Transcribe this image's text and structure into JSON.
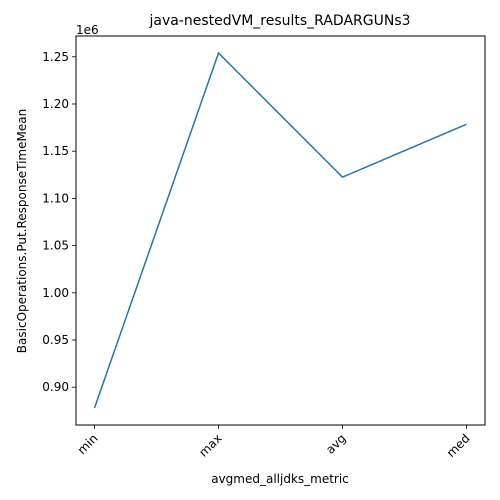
{
  "chart_data": {
    "type": "line",
    "title": "java-nestedVM_results_RADARGUNs3",
    "xlabel": "avgmed_alljdks_metric",
    "ylabel": "BasicOperations.Put.ResponseTimeMean",
    "offset_label": "1e6",
    "categories": [
      "min",
      "max",
      "avg",
      "med"
    ],
    "values": [
      878000,
      1254000,
      1122500,
      1178500
    ],
    "ylim": [
      860000,
      1272000
    ],
    "yticks": [
      900000,
      950000,
      1000000,
      1050000,
      1100000,
      1150000,
      1200000,
      1250000
    ],
    "ytick_labels": [
      "0.90",
      "0.95",
      "1.00",
      "1.05",
      "1.10",
      "1.15",
      "1.20",
      "1.25"
    ],
    "grid": false,
    "line_color": "#1f77b4"
  }
}
